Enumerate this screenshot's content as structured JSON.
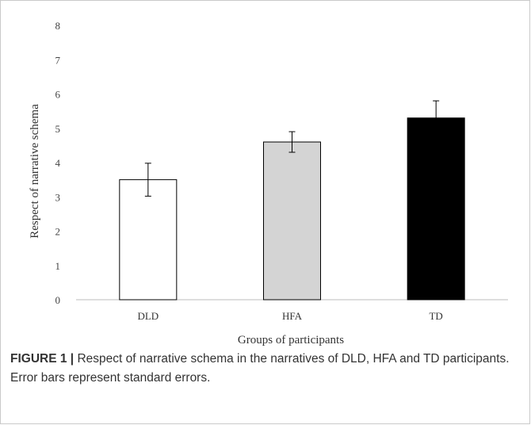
{
  "chart_data": {
    "type": "bar",
    "categories": [
      "DLD",
      "HFA",
      "TD"
    ],
    "values": [
      3.5,
      4.6,
      5.3
    ],
    "errors": [
      0.48,
      0.3,
      0.5
    ],
    "bar_colors": [
      "#ffffff",
      "#d4d4d4",
      "#000000"
    ],
    "xlabel": "Groups of participants",
    "ylabel": "Respect of narrative schema",
    "ylim": [
      0,
      8
    ],
    "yticks": [
      "0",
      "1",
      "2",
      "3",
      "4",
      "5",
      "6",
      "7",
      "8"
    ],
    "grid": false,
    "legend": "none"
  },
  "caption": {
    "label": "FIGURE 1 |",
    "text": " Respect of narrative schema in the narratives of DLD, HFA and TD participants. Error bars represent standard errors."
  }
}
